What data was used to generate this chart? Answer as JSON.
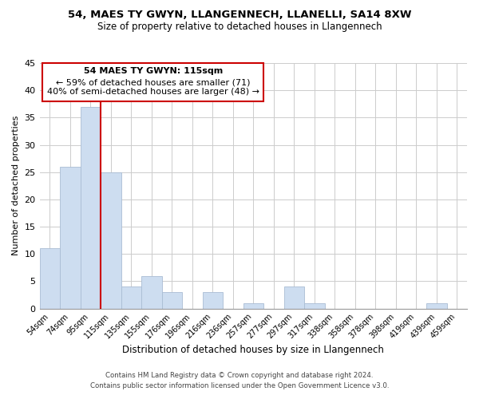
{
  "title": "54, MAES TY GWYN, LLANGENNECH, LLANELLI, SA14 8XW",
  "subtitle": "Size of property relative to detached houses in Llangennech",
  "xlabel": "Distribution of detached houses by size in Llangennech",
  "ylabel": "Number of detached properties",
  "categories": [
    "54sqm",
    "74sqm",
    "95sqm",
    "115sqm",
    "135sqm",
    "155sqm",
    "176sqm",
    "196sqm",
    "216sqm",
    "236sqm",
    "257sqm",
    "277sqm",
    "297sqm",
    "317sqm",
    "338sqm",
    "358sqm",
    "378sqm",
    "398sqm",
    "419sqm",
    "439sqm",
    "459sqm"
  ],
  "values": [
    11,
    26,
    37,
    25,
    4,
    6,
    3,
    0,
    3,
    0,
    1,
    0,
    4,
    1,
    0,
    0,
    0,
    0,
    0,
    1,
    0
  ],
  "bar_color": "#cdddf0",
  "bar_edgecolor": "#aabdd4",
  "vline_color": "#cc0000",
  "vline_index": 3,
  "ylim": [
    0,
    45
  ],
  "yticks": [
    0,
    5,
    10,
    15,
    20,
    25,
    30,
    35,
    40,
    45
  ],
  "annotation_title": "54 MAES TY GWYN: 115sqm",
  "annotation_line1": "← 59% of detached houses are smaller (71)",
  "annotation_line2": "40% of semi-detached houses are larger (48) →",
  "annotation_box_color": "#cc0000",
  "background_color": "#ffffff",
  "footer_line1": "Contains HM Land Registry data © Crown copyright and database right 2024.",
  "footer_line2": "Contains public sector information licensed under the Open Government Licence v3.0."
}
